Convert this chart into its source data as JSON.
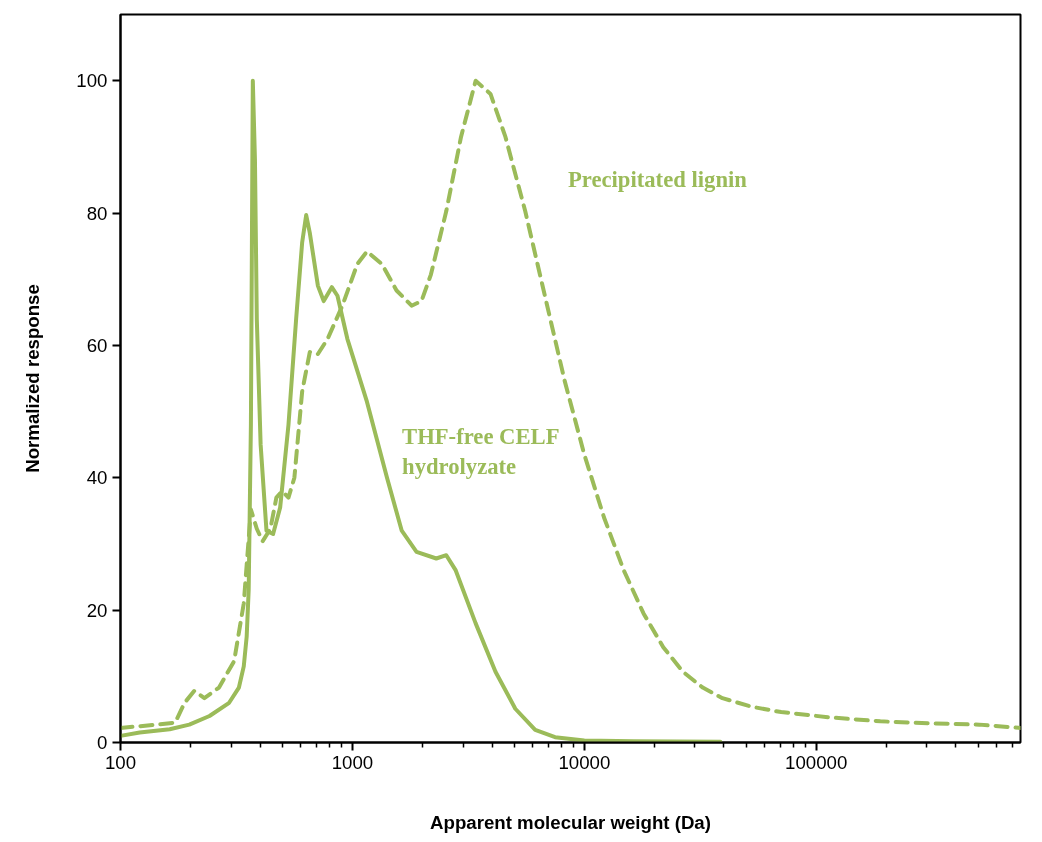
{
  "chart_data": {
    "type": "line",
    "xlabel": "Apparent molecular weight (Da)",
    "ylabel": "Normalized response",
    "log": "x",
    "xlim": [
      100,
      760000
    ],
    "ylim": [
      0,
      110
    ],
    "xticks": [
      100,
      {
        "value": 200,
        "label": null
      },
      {
        "value": 300,
        "label": null
      },
      {
        "value": 400,
        "label": null
      },
      {
        "value": 500,
        "label": null
      },
      {
        "value": 600,
        "label": null
      },
      {
        "value": 700,
        "label": null
      },
      {
        "value": 800,
        "label": null
      },
      {
        "value": 900,
        "label": null
      },
      1000,
      {
        "value": 2000,
        "label": null
      },
      {
        "value": 3000,
        "label": null
      },
      {
        "value": 4000,
        "label": null
      },
      {
        "value": 5000,
        "label": null
      },
      {
        "value": 6000,
        "label": null
      },
      {
        "value": 7000,
        "label": null
      },
      {
        "value": 8000,
        "label": null
      },
      {
        "value": 9000,
        "label": null
      },
      10000,
      {
        "value": 20000,
        "label": null
      },
      {
        "value": 30000,
        "label": null
      },
      {
        "value": 40000,
        "label": null
      },
      {
        "value": 50000,
        "label": null
      },
      {
        "value": 60000,
        "label": null
      },
      {
        "value": 70000,
        "label": null
      },
      {
        "value": 80000,
        "label": null
      },
      {
        "value": 90000,
        "label": null
      },
      100000,
      {
        "value": 200000,
        "label": null
      },
      {
        "value": 300000,
        "label": null
      },
      {
        "value": 400000,
        "label": null
      },
      {
        "value": 500000,
        "label": null
      },
      {
        "value": 600000,
        "label": null
      },
      {
        "value": 700000,
        "label": null
      }
    ],
    "yticks": [
      0,
      20,
      40,
      60,
      80,
      100
    ],
    "grid": false,
    "marker": "none",
    "series": [
      {
        "name": "THF-free CELF\nhydrolyzate",
        "color": "#9bbb59",
        "line_style": "solid",
        "x": [
          100,
          121,
          163,
          198,
          242,
          294,
          324,
          340,
          350,
          357,
          365,
          372,
          380,
          387,
          402,
          426,
          455,
          488,
          530,
          572,
          607,
          632,
          655,
          710,
          752,
          815,
          862,
          951,
          1155,
          1410,
          1632,
          1890,
          2300,
          2540,
          2790,
          3400,
          4140,
          5040,
          6140,
          7480,
          10000,
          16300,
          38600
        ],
        "values": [
          1,
          1.5,
          2,
          2.7,
          4,
          6,
          8.3,
          11.5,
          16,
          23,
          48,
          100,
          88,
          64,
          45,
          32,
          31.5,
          35.5,
          48,
          64,
          75.5,
          79.7,
          77,
          69,
          66.7,
          68.8,
          67.5,
          61,
          51.5,
          40,
          32,
          28.8,
          27.8,
          28.3,
          26,
          18,
          10.7,
          5.1,
          1.9,
          0.8,
          0.3,
          0.2,
          0.1
        ]
      },
      {
        "name": "Precipitated lignin",
        "color": "#9bbb59",
        "line_style": "dashed",
        "x": [
          100,
          134,
          172,
          189,
          208,
          230,
          266,
          309,
          340,
          365,
          387,
          410,
          443,
          470,
          498,
          530,
          562,
          607,
          655,
          710,
          782,
          905,
          1050,
          1155,
          1340,
          1550,
          1800,
          1985,
          2180,
          2540,
          2940,
          3400,
          3940,
          4570,
          5560,
          6760,
          8220,
          10000,
          12160,
          14800,
          18000,
          21900,
          26600,
          32400,
          39400,
          52700,
          70600,
          114000,
          189000,
          305000,
          505000,
          760000
        ],
        "values": [
          2.2,
          2.6,
          3,
          6,
          7.8,
          6.7,
          8.3,
          12.3,
          21,
          35.2,
          32.3,
          30.4,
          32.3,
          37,
          38,
          37,
          40,
          53,
          59,
          58.7,
          61,
          66,
          72.3,
          74.2,
          72.3,
          68.3,
          66,
          66.7,
          70.7,
          80.3,
          91.5,
          100,
          98,
          91.5,
          80.3,
          67.5,
          54.7,
          43.5,
          34,
          26,
          19.5,
          14.4,
          10.7,
          8.3,
          6.7,
          5.4,
          4.6,
          3.8,
          3.2,
          2.9,
          2.7,
          2.2
        ]
      }
    ]
  }
}
